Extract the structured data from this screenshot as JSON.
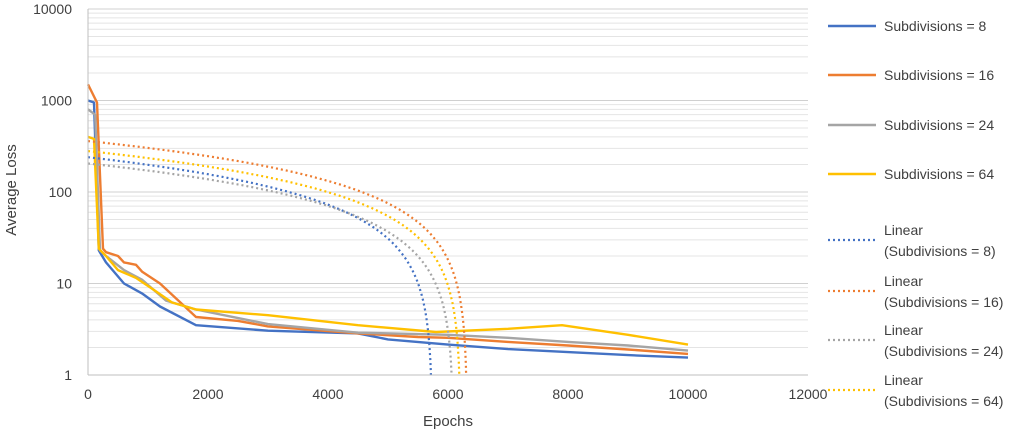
{
  "chart_data": {
    "type": "line",
    "title": "",
    "xlabel": "Epochs",
    "ylabel": "Average Loss",
    "y_scale": "log",
    "xlim": [
      0,
      12000
    ],
    "ylim": [
      1,
      10000
    ],
    "x_ticks": [
      "0",
      "2000",
      "4000",
      "6000",
      "8000",
      "10000",
      "12000"
    ],
    "y_ticks": [
      "1",
      "10",
      "100",
      "1000",
      "10000"
    ],
    "grid": "horizontal major and minor gridlines",
    "legend_position": "right",
    "series": [
      {
        "name": "Subdivisions = 8",
        "style": "solid",
        "color": "#4472C4",
        "points": [
          [
            0,
            1000
          ],
          [
            100,
            950
          ],
          [
            180,
            23
          ],
          [
            300,
            17
          ],
          [
            600,
            10
          ],
          [
            900,
            7.8
          ],
          [
            1200,
            5.6
          ],
          [
            1800,
            3.5
          ],
          [
            3000,
            3.05
          ],
          [
            4500,
            2.85
          ],
          [
            5000,
            2.45
          ],
          [
            6000,
            2.15
          ],
          [
            7000,
            1.92
          ],
          [
            8000,
            1.78
          ],
          [
            9000,
            1.65
          ],
          [
            10000,
            1.55
          ]
        ]
      },
      {
        "name": "Subdivisions = 16",
        "style": "solid",
        "color": "#ED7D31",
        "points": [
          [
            0,
            1500
          ],
          [
            150,
            950
          ],
          [
            250,
            24
          ],
          [
            300,
            22
          ],
          [
            500,
            20
          ],
          [
            600,
            17
          ],
          [
            800,
            16
          ],
          [
            900,
            13.5
          ],
          [
            1200,
            10
          ],
          [
            1800,
            4.3
          ],
          [
            2500,
            3.9
          ],
          [
            3000,
            3.4
          ],
          [
            4500,
            2.85
          ],
          [
            5500,
            2.6
          ],
          [
            6000,
            2.55
          ],
          [
            7000,
            2.3
          ],
          [
            8000,
            2.1
          ],
          [
            9000,
            1.9
          ],
          [
            10000,
            1.7
          ]
        ]
      },
      {
        "name": "Subdivisions = 24",
        "style": "solid",
        "color": "#A5A5A5",
        "points": [
          [
            0,
            800
          ],
          [
            120,
            700
          ],
          [
            200,
            23
          ],
          [
            300,
            20
          ],
          [
            600,
            14
          ],
          [
            900,
            11
          ],
          [
            1300,
            6.5
          ],
          [
            1800,
            5.2
          ],
          [
            3000,
            3.6
          ],
          [
            4500,
            2.9
          ],
          [
            6000,
            2.75
          ],
          [
            7000,
            2.55
          ],
          [
            8000,
            2.3
          ],
          [
            9000,
            2.1
          ],
          [
            10000,
            1.85
          ]
        ]
      },
      {
        "name": "Subdivisions = 64",
        "style": "solid",
        "color": "#FFC000",
        "points": [
          [
            0,
            400
          ],
          [
            100,
            380
          ],
          [
            180,
            24
          ],
          [
            300,
            20
          ],
          [
            500,
            14
          ],
          [
            800,
            11.5
          ],
          [
            1100,
            8.5
          ],
          [
            1400,
            6.2
          ],
          [
            1800,
            5.2
          ],
          [
            3000,
            4.5
          ],
          [
            4500,
            3.5
          ],
          [
            5800,
            2.95
          ],
          [
            7000,
            3.2
          ],
          [
            7900,
            3.5
          ],
          [
            9000,
            2.75
          ],
          [
            10000,
            2.15
          ]
        ]
      },
      {
        "name": "Linear\n(Subdivisions = 8)",
        "style": "dotted",
        "color": "#4472C4",
        "linear": {
          "y0": 240,
          "zero_x": 5740
        }
      },
      {
        "name": "Linear\n(Subdivisions = 16)",
        "style": "dotted",
        "color": "#ED7D31",
        "linear": {
          "y0": 360,
          "zero_x": 6320
        }
      },
      {
        "name": "Linear\n(Subdivisions = 24)",
        "style": "dotted",
        "color": "#A5A5A5",
        "linear": {
          "y0": 205,
          "zero_x": 6090
        }
      },
      {
        "name": "Linear\n(Subdivisions = 64)",
        "style": "dotted",
        "color": "#FFC000",
        "linear": {
          "y0": 280,
          "zero_x": 6210
        }
      }
    ]
  }
}
